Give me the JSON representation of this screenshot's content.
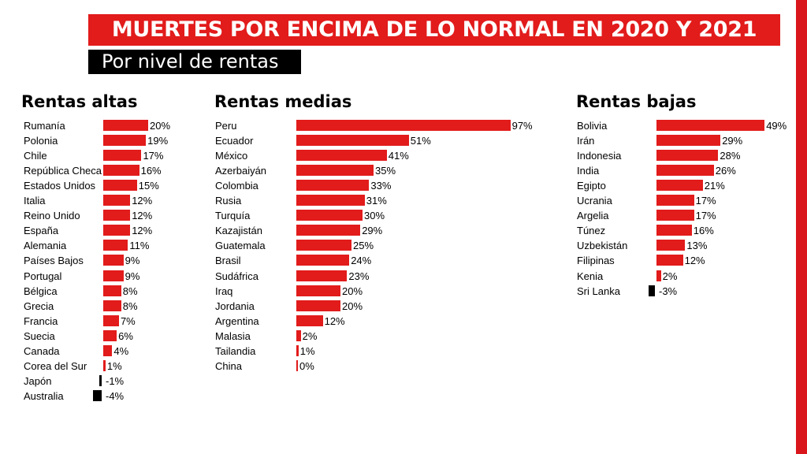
{
  "title": "MUERTES POR ENCIMA DE LO NORMAL EN 2020 Y 2021",
  "subtitle": "Por nivel de rentas",
  "colors": {
    "positive": "#e21b1b",
    "negative": "#000000",
    "frame": "#d9161c"
  },
  "chart_data": [
    {
      "type": "bar",
      "orientation": "horizontal",
      "title": "Rentas altas",
      "categories": [
        "Rumanía",
        "Polonia",
        "Chile",
        "República Checa",
        "Estados Unidos",
        "Italia",
        "Reino Unido",
        "España",
        "Alemania",
        "Países Bajos",
        "Portugal",
        "Bélgica",
        "Grecia",
        "Francia",
        "Suecia",
        "Canada",
        "Corea del Sur",
        "Japón",
        "Australia"
      ],
      "values": [
        20,
        19,
        17,
        16,
        15,
        12,
        12,
        12,
        11,
        9,
        9,
        8,
        8,
        7,
        6,
        4,
        1,
        -1,
        -4
      ],
      "value_labels": [
        "20%",
        "19%",
        "17%",
        "16%",
        "15%",
        "12%",
        "12%",
        "12%",
        "11%",
        "9%",
        "9%",
        "8%",
        "8%",
        "7%",
        "6%",
        "4%",
        "1%",
        "-1%",
        "-4%"
      ]
    },
    {
      "type": "bar",
      "orientation": "horizontal",
      "title": "Rentas medias",
      "categories": [
        "Peru",
        "Ecuador",
        "México",
        "Azerbaiyán",
        "Colombia",
        "Rusia",
        "Turquía",
        "Kazajistán",
        "Guatemala",
        "Brasil",
        "Sudáfrica",
        "Iraq",
        "Jordania",
        "Argentina",
        "Malasia",
        "Tailandia",
        "China"
      ],
      "values": [
        97,
        51,
        41,
        35,
        33,
        31,
        30,
        29,
        25,
        24,
        23,
        20,
        20,
        12,
        2,
        1,
        0
      ],
      "value_labels": [
        "97%",
        "51%",
        "41%",
        "35%",
        "33%",
        "31%",
        "30%",
        "29%",
        "25%",
        "24%",
        "23%",
        "20%",
        "20%",
        "12%",
        "2%",
        "1%",
        "0%"
      ]
    },
    {
      "type": "bar",
      "orientation": "horizontal",
      "title": "Rentas bajas",
      "categories": [
        "Bolivia",
        "Irán",
        "Indonesia",
        "India",
        "Egipto",
        "Ucrania",
        "Argelia",
        "Túnez",
        "Uzbekistán",
        "Filipinas",
        "Kenia",
        "Sri Lanka"
      ],
      "values": [
        49,
        29,
        28,
        26,
        21,
        17,
        17,
        16,
        13,
        12,
        2,
        -3
      ],
      "value_labels": [
        "49%",
        "29%",
        "28%",
        "26%",
        "21%",
        "17%",
        "17%",
        "16%",
        "13%",
        "12%",
        "2%",
        "-3%"
      ]
    }
  ]
}
